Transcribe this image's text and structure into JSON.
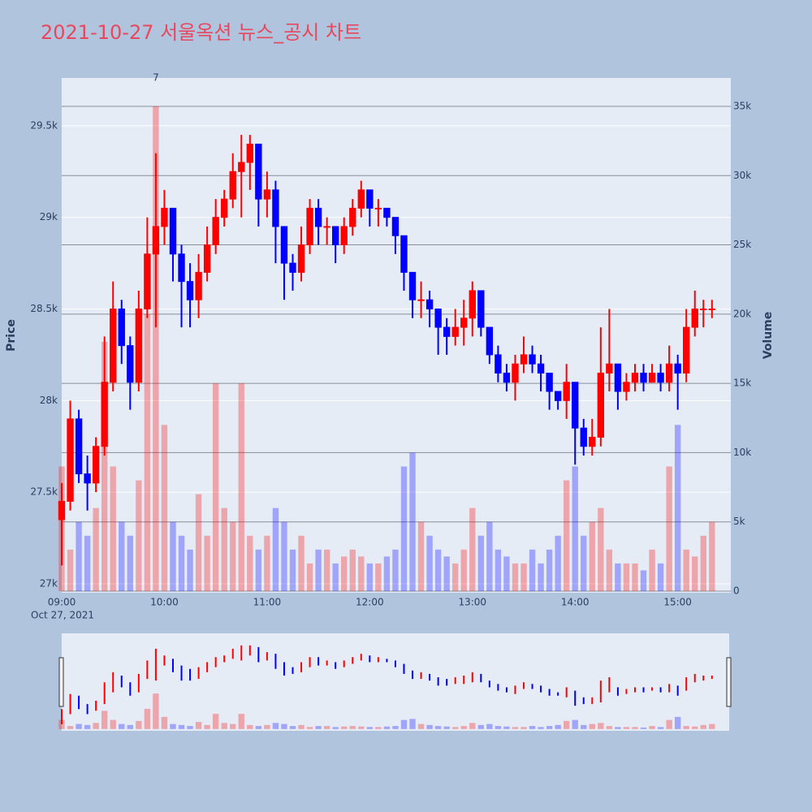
{
  "chart_data": {
    "type": "candlestick",
    "title": "2021-10-27 서울옥션 뉴스_공시 차트",
    "x_date_label": "Oct 27, 2021",
    "ylabel": "Price",
    "y2label": "Volume",
    "increasing_color": "#ff0000",
    "decreasing_color": "#0000ff",
    "x": [
      "2021-10-27 09:00",
      "2021-10-27 09:05",
      "2021-10-27 09:10",
      "2021-10-27 09:15",
      "2021-10-27 09:20",
      "2021-10-27 09:25",
      "2021-10-27 09:30",
      "2021-10-27 09:35",
      "2021-10-27 09:40",
      "2021-10-27 09:45",
      "2021-10-27 09:50",
      "2021-10-27 09:55",
      "2021-10-27 10:00",
      "2021-10-27 10:05",
      "2021-10-27 10:10",
      "2021-10-27 10:15",
      "2021-10-27 10:20",
      "2021-10-27 10:25",
      "2021-10-27 10:30",
      "2021-10-27 10:35",
      "2021-10-27 10:40",
      "2021-10-27 10:45",
      "2021-10-27 10:50",
      "2021-10-27 10:55",
      "2021-10-27 11:00",
      "2021-10-27 11:05",
      "2021-10-27 11:10",
      "2021-10-27 11:15",
      "2021-10-27 11:20",
      "2021-10-27 11:25",
      "2021-10-27 11:30",
      "2021-10-27 11:35",
      "2021-10-27 11:40",
      "2021-10-27 11:45",
      "2021-10-27 11:50",
      "2021-10-27 11:55",
      "2021-10-27 12:00",
      "2021-10-27 12:05",
      "2021-10-27 12:10",
      "2021-10-27 12:15",
      "2021-10-27 12:20",
      "2021-10-27 12:25",
      "2021-10-27 12:30",
      "2021-10-27 12:35",
      "2021-10-27 12:40",
      "2021-10-27 12:45",
      "2021-10-27 12:50",
      "2021-10-27 12:55",
      "2021-10-27 13:00",
      "2021-10-27 13:05",
      "2021-10-27 13:10",
      "2021-10-27 13:15",
      "2021-10-27 13:20",
      "2021-10-27 13:25",
      "2021-10-27 13:30",
      "2021-10-27 13:35",
      "2021-10-27 13:40",
      "2021-10-27 13:45",
      "2021-10-27 13:50",
      "2021-10-27 13:55",
      "2021-10-27 14:00",
      "2021-10-27 14:05",
      "2021-10-27 14:10",
      "2021-10-27 14:15",
      "2021-10-27 14:20",
      "2021-10-27 14:25",
      "2021-10-27 14:30",
      "2021-10-27 14:35",
      "2021-10-27 14:40",
      "2021-10-27 14:45",
      "2021-10-27 14:50",
      "2021-10-27 14:55",
      "2021-10-27 15:00",
      "2021-10-27 15:05",
      "2021-10-27 15:10",
      "2021-10-27 15:15",
      "2021-10-27 15:20"
    ],
    "open": [
      27350,
      27450,
      27900,
      27600,
      27550,
      27750,
      28100,
      28500,
      28300,
      28100,
      28500,
      28800,
      28950,
      29050,
      28800,
      28650,
      28550,
      28700,
      28850,
      29000,
      29100,
      29250,
      29300,
      29400,
      29100,
      29150,
      28950,
      28750,
      28700,
      28850,
      29050,
      28950,
      28950,
      28850,
      28950,
      29050,
      29150,
      29050,
      29050,
      29000,
      28900,
      28700,
      28550,
      28550,
      28500,
      28400,
      28350,
      28400,
      28450,
      28600,
      28400,
      28250,
      28150,
      28100,
      28200,
      28250,
      28200,
      28150,
      28050,
      28000,
      28100,
      27850,
      27750,
      27800,
      28150,
      28200,
      28050,
      28100,
      28150,
      28100,
      28150,
      28100,
      28200,
      28150,
      28400,
      28500,
      28500
    ],
    "high": [
      27550,
      28000,
      27950,
      27700,
      27800,
      28350,
      28650,
      28550,
      28350,
      28600,
      29000,
      29350,
      29150,
      29050,
      28850,
      28750,
      28800,
      28950,
      29100,
      29150,
      29350,
      29450,
      29450,
      29400,
      29250,
      29200,
      28950,
      28800,
      28950,
      29100,
      29100,
      29000,
      28950,
      29000,
      29100,
      29200,
      29150,
      29100,
      29050,
      29000,
      28900,
      28700,
      28650,
      28600,
      28500,
      28450,
      28500,
      28550,
      28650,
      28600,
      28400,
      28300,
      28200,
      28250,
      28350,
      28300,
      28250,
      28150,
      28050,
      28200,
      28100,
      27900,
      27900,
      28400,
      28500,
      28200,
      28150,
      28200,
      28200,
      28200,
      28200,
      28300,
      28250,
      28500,
      28600,
      28550,
      28550
    ],
    "low": [
      27100,
      27400,
      27550,
      27400,
      27500,
      27700,
      28050,
      28200,
      27950,
      28050,
      28450,
      28400,
      28850,
      28650,
      28400,
      28400,
      28450,
      28650,
      28800,
      28950,
      29050,
      29000,
      29150,
      28950,
      29000,
      28750,
      28550,
      28600,
      28650,
      28800,
      28850,
      28850,
      28750,
      28800,
      28900,
      29000,
      28950,
      28950,
      28950,
      28800,
      28600,
      28450,
      28450,
      28400,
      28250,
      28250,
      28300,
      28300,
      28350,
      28350,
      28200,
      28100,
      28050,
      28000,
      28150,
      28150,
      28050,
      27950,
      27950,
      27900,
      27650,
      27700,
      27700,
      27750,
      28050,
      27950,
      28000,
      28050,
      28050,
      28100,
      28050,
      28050,
      27950,
      28100,
      28350,
      28400,
      28450
    ],
    "close": [
      27450,
      27900,
      27600,
      27550,
      27750,
      28100,
      28500,
      28300,
      28100,
      28500,
      28800,
      28950,
      29050,
      28800,
      28650,
      28550,
      28700,
      28850,
      29000,
      29100,
      29250,
      29300,
      29400,
      29100,
      29150,
      28950,
      28750,
      28700,
      28850,
      29050,
      28950,
      28950,
      28850,
      28950,
      29050,
      29150,
      29050,
      29050,
      29000,
      28900,
      28700,
      28550,
      28550,
      28500,
      28400,
      28350,
      28400,
      28450,
      28600,
      28400,
      28250,
      28150,
      28100,
      28200,
      28250,
      28200,
      28150,
      28050,
      28000,
      28100,
      27850,
      27750,
      27800,
      28150,
      28200,
      28050,
      28100,
      28150,
      28100,
      28150,
      28100,
      28200,
      28150,
      28400,
      28500,
      28500,
      28500
    ],
    "volume": [
      9000,
      3000,
      5000,
      4000,
      6000,
      18000,
      9000,
      5000,
      4000,
      8000,
      20000,
      35000,
      12000,
      5000,
      4000,
      3000,
      7000,
      4000,
      15000,
      6000,
      5000,
      15000,
      4000,
      3000,
      4000,
      6000,
      5000,
      3000,
      4000,
      2000,
      3000,
      3000,
      2000,
      2500,
      3000,
      2500,
      2000,
      2000,
      2500,
      3000,
      9000,
      10000,
      5000,
      4000,
      3000,
      2500,
      2000,
      3000,
      6000,
      4000,
      5000,
      3000,
      2500,
      2000,
      2000,
      3000,
      2000,
      3000,
      4000,
      8000,
      9000,
      4000,
      5000,
      6000,
      3000,
      2000,
      2000,
      2000,
      1500,
      3000,
      2000,
      9000,
      12000,
      3000,
      2500,
      4000,
      5000
    ],
    "annotations": [
      {
        "text": "7",
        "x": "2021-10-27 09:55"
      }
    ],
    "xlim": [
      "2021-10-27 09:00",
      "2021-10-27 15:31"
    ],
    "xticks": [
      {
        "value": "2021-10-27 09:00",
        "label": "09:00"
      },
      {
        "value": "2021-10-27 10:00",
        "label": "10:00"
      },
      {
        "value": "2021-10-27 11:00",
        "label": "11:00"
      },
      {
        "value": "2021-10-27 12:00",
        "label": "12:00"
      },
      {
        "value": "2021-10-27 13:00",
        "label": "13:00"
      },
      {
        "value": "2021-10-27 14:00",
        "label": "14:00"
      },
      {
        "value": "2021-10-27 15:00",
        "label": "15:00"
      }
    ],
    "ylim": [
      26951,
      29761
    ],
    "yticks": [
      {
        "value": 27000,
        "label": "27k"
      },
      {
        "value": 27500,
        "label": "27.5k"
      },
      {
        "value": 28000,
        "label": "28k"
      },
      {
        "value": 28500,
        "label": "28.5k"
      },
      {
        "value": 29000,
        "label": "29k"
      },
      {
        "value": 29500,
        "label": "29.5k"
      }
    ],
    "y2lim": [
      -117,
      37050
    ],
    "y2ticks": [
      0,
      {
        "value": 5000,
        "label": "5k"
      },
      {
        "value": 10000,
        "label": "10k"
      },
      {
        "value": 15000,
        "label": "15k"
      },
      {
        "value": 20000,
        "label": "20k"
      },
      {
        "value": 25000,
        "label": "25k"
      },
      {
        "value": 30000,
        "label": "30k"
      },
      {
        "value": 35000,
        "label": "35k"
      }
    ],
    "grid": true,
    "rangeslider": true
  }
}
